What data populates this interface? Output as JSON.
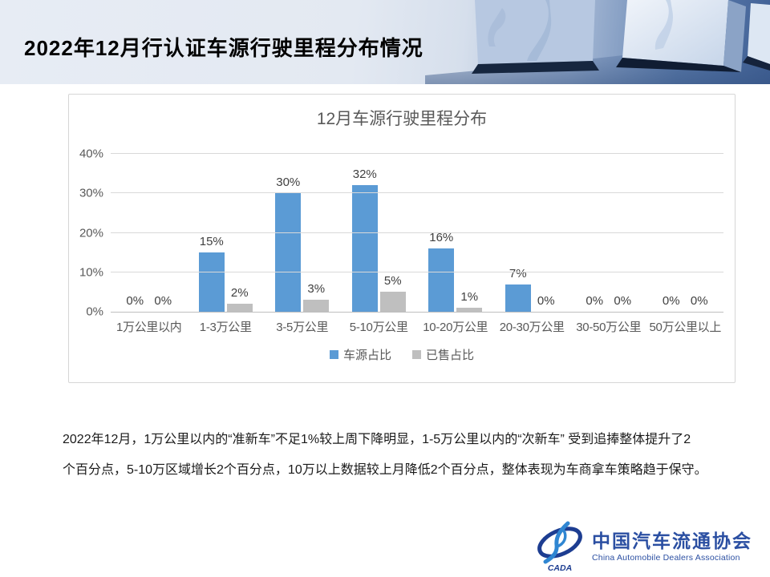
{
  "header": {
    "title": "2022年12月行认证车源行驶里程分布情况"
  },
  "chart_data": {
    "type": "bar",
    "title": "12月车源行驶里程分布",
    "categories": [
      "1万公里以内",
      "1-3万公里",
      "3-5万公里",
      "5-10万公里",
      "10-20万公里",
      "20-30万公里",
      "30-50万公里",
      "50万公里以上"
    ],
    "series": [
      {
        "key": "source-share",
        "name": "车源占比",
        "color": "#5B9BD5",
        "values": [
          0,
          15,
          30,
          32,
          16,
          7,
          0,
          0
        ]
      },
      {
        "key": "sold-share",
        "name": "已售占比",
        "color": "#BFBFBF",
        "values": [
          0,
          2,
          3,
          5,
          1,
          0,
          0,
          0
        ]
      }
    ],
    "xlabel": "",
    "ylabel": "",
    "ylim": [
      0,
      40
    ],
    "yticks": [
      "0%",
      "10%",
      "20%",
      "30%",
      "40%"
    ],
    "value_suffix": "%",
    "grid": true,
    "legend_position": "bottom"
  },
  "summary": {
    "lines": [
      "2022年12月，1万公里以内的“准新车”不足1%较上周下降明显，1-5万公里以内的“次新车” 受到追捧整体提升了2",
      "个百分点，5-10万区域增长2个百分点，10万以上数据较上月降低2个百分点，整体表现为车商拿车策略趋于保守。"
    ]
  },
  "footer": {
    "logo_text": "CADA",
    "org_name_cn": "中国汽车流通协会",
    "org_name_en": "China Automobile Dealers Association",
    "brand_color": "#2b4fa2",
    "logo_dark_blue": "#1d3d91",
    "logo_light_blue": "#2f86d2"
  }
}
